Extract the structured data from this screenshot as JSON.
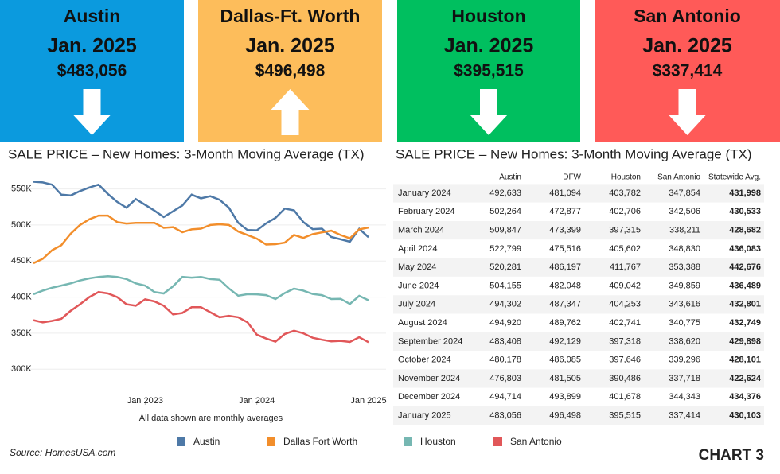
{
  "tiles": [
    {
      "city": "Austin",
      "period": "Jan. 2025",
      "price": "$483,056",
      "direction": "down",
      "color": "#0b9ade"
    },
    {
      "city": "Dallas-Ft. Worth",
      "period": "Jan. 2025",
      "price": "$496,498",
      "direction": "up",
      "color": "#fdbd5b"
    },
    {
      "city": "Houston",
      "period": "Jan. 2025",
      "price": "$395,515",
      "direction": "down",
      "color": "#00bf5f"
    },
    {
      "city": "San Antonio",
      "period": "Jan. 2025",
      "price": "$337,414",
      "direction": "down",
      "color": "#ff5a58"
    }
  ],
  "chart_data": {
    "type": "line",
    "title": "SALE PRICE – New Homes: 3-Month Moving Average (TX)",
    "note": "All data shown are monthly averages",
    "x": [
      "2022-01",
      "2022-02",
      "2022-03",
      "2022-04",
      "2022-05",
      "2022-06",
      "2022-07",
      "2022-08",
      "2022-09",
      "2022-10",
      "2022-11",
      "2022-12",
      "2023-01",
      "2023-02",
      "2023-03",
      "2023-04",
      "2023-05",
      "2023-06",
      "2023-07",
      "2023-08",
      "2023-09",
      "2023-10",
      "2023-11",
      "2023-12",
      "2024-01",
      "2024-02",
      "2024-03",
      "2024-04",
      "2024-05",
      "2024-06",
      "2024-07",
      "2024-08",
      "2024-09",
      "2024-10",
      "2024-11",
      "2024-12",
      "2025-01"
    ],
    "xlim": [
      "2022-01",
      "2025-01"
    ],
    "xticks": [
      {
        "value": "2023-01",
        "label": "Jan 2023"
      },
      {
        "value": "2024-01",
        "label": "Jan 2024"
      },
      {
        "value": "2025-01",
        "label": "Jan 2025"
      }
    ],
    "ylim": [
      255000,
      565000
    ],
    "yticks": [
      {
        "value": 300000,
        "label": "300K"
      },
      {
        "value": 350000,
        "label": "350K"
      },
      {
        "value": 400000,
        "label": "400K"
      },
      {
        "value": 450000,
        "label": "450K"
      },
      {
        "value": 500000,
        "label": "500K"
      },
      {
        "value": 550000,
        "label": "550K"
      }
    ],
    "grid": true,
    "series": [
      {
        "name": "Austin",
        "color": "#4e79a7",
        "values": [
          560000,
          559000,
          556000,
          542000,
          541000,
          547000,
          552000,
          556000,
          543000,
          532000,
          524000,
          536000,
          528000,
          520000,
          511000,
          519000,
          527000,
          542000,
          537000,
          540000,
          535000,
          524000,
          503000,
          493000,
          492633,
          502264,
          509847,
          522799,
          520281,
          504155,
          494302,
          494920,
          483408,
          480178,
          476803,
          494714,
          483056
        ]
      },
      {
        "name": "Dallas Fort Worth",
        "color": "#f28e2b",
        "values": [
          447000,
          453000,
          465000,
          472000,
          488000,
          500000,
          508000,
          513000,
          513000,
          504000,
          502000,
          503000,
          503000,
          503000,
          496000,
          497000,
          490000,
          494000,
          495000,
          500000,
          501000,
          500000,
          491000,
          486000,
          481094,
          472877,
          473399,
          475516,
          486197,
          482048,
          487347,
          489762,
          492129,
          486085,
          481505,
          493899,
          496498
        ]
      },
      {
        "name": "Houston",
        "color": "#76b7b2",
        "values": [
          404000,
          409000,
          413000,
          416000,
          419000,
          423000,
          426000,
          428000,
          429000,
          428000,
          425000,
          419000,
          416000,
          407000,
          405000,
          415000,
          428000,
          427000,
          428000,
          425000,
          424000,
          412000,
          402000,
          404000,
          403782,
          402706,
          397315,
          405602,
          411767,
          409042,
          404253,
          402741,
          397318,
          397646,
          390486,
          401678,
          395515
        ]
      },
      {
        "name": "San Antonio",
        "color": "#e15759",
        "values": [
          368000,
          365000,
          367000,
          370000,
          381000,
          390000,
          400000,
          407000,
          405000,
          400000,
          390000,
          388000,
          397000,
          394000,
          388000,
          376000,
          378000,
          386000,
          386000,
          379000,
          372000,
          374000,
          372000,
          365000,
          347854,
          342506,
          338211,
          348830,
          353388,
          349859,
          343616,
          340775,
          338620,
          339296,
          337718,
          344343,
          337414
        ]
      }
    ]
  },
  "table": {
    "title": "SALE PRICE – New Homes: 3-Month Moving Average (TX)",
    "columns": [
      "Austin",
      "DFW",
      "Houston",
      "San Antonio",
      "Statewide Avg."
    ],
    "rows": [
      [
        "January 2024",
        "492,633",
        "481,094",
        "403,782",
        "347,854",
        "431,998"
      ],
      [
        "February 2024",
        "502,264",
        "472,877",
        "402,706",
        "342,506",
        "430,533"
      ],
      [
        "March 2024",
        "509,847",
        "473,399",
        "397,315",
        "338,211",
        "428,682"
      ],
      [
        "April 2024",
        "522,799",
        "475,516",
        "405,602",
        "348,830",
        "436,083"
      ],
      [
        "May 2024",
        "520,281",
        "486,197",
        "411,767",
        "353,388",
        "442,676"
      ],
      [
        "June 2024",
        "504,155",
        "482,048",
        "409,042",
        "349,859",
        "436,489"
      ],
      [
        "July 2024",
        "494,302",
        "487,347",
        "404,253",
        "343,616",
        "432,801"
      ],
      [
        "August 2024",
        "494,920",
        "489,762",
        "402,741",
        "340,775",
        "432,749"
      ],
      [
        "September 2024",
        "483,408",
        "492,129",
        "397,318",
        "338,620",
        "429,898"
      ],
      [
        "October 2024",
        "480,178",
        "486,085",
        "397,646",
        "339,296",
        "428,101"
      ],
      [
        "November 2024",
        "476,803",
        "481,505",
        "390,486",
        "337,718",
        "422,624"
      ],
      [
        "December 2024",
        "494,714",
        "493,899",
        "401,678",
        "344,343",
        "434,376"
      ],
      [
        "January 2025",
        "483,056",
        "496,498",
        "395,515",
        "337,414",
        "430,103"
      ]
    ]
  },
  "source": "Source: HomesUSA.com",
  "label": "CHART 3"
}
